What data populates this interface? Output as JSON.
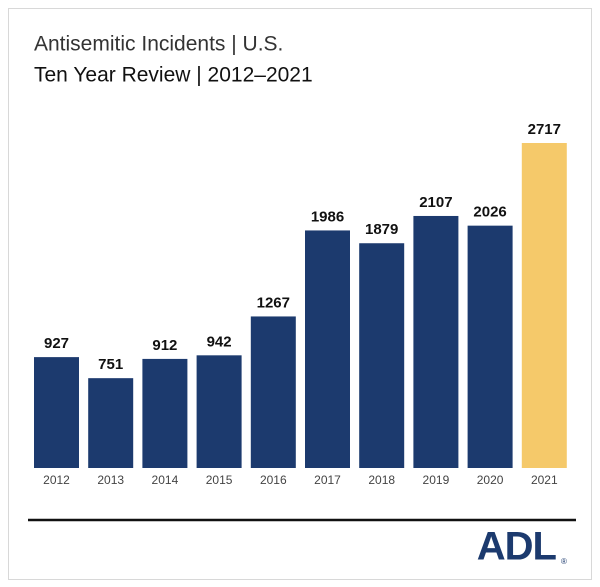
{
  "chart_data": {
    "type": "bar",
    "title": "Antisemitic Incidents | U.S.",
    "subtitle": "Ten Year Review | 2012–2021",
    "categories": [
      "2012",
      "2013",
      "2014",
      "2015",
      "2016",
      "2017",
      "2018",
      "2019",
      "2020",
      "2021"
    ],
    "values": [
      927,
      751,
      912,
      942,
      1267,
      1986,
      1879,
      2107,
      2026,
      2717
    ],
    "colors": [
      "#1c3a6e",
      "#1c3a6e",
      "#1c3a6e",
      "#1c3a6e",
      "#1c3a6e",
      "#1c3a6e",
      "#1c3a6e",
      "#1c3a6e",
      "#1c3a6e",
      "#f5c96a"
    ]
  },
  "logo": {
    "text": "ADL",
    "mark": "®"
  }
}
